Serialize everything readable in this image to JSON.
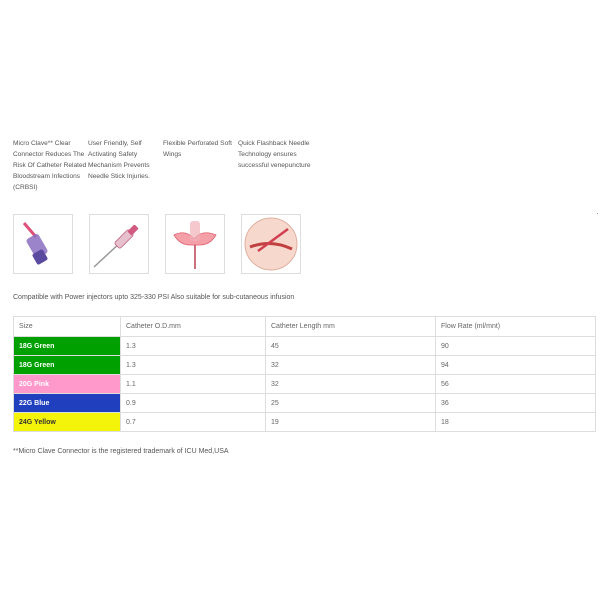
{
  "features": [
    "Micro Clave** Clear Connector Reduces The Risk Of Catheter Related Bloodstream Infections (CRBSI)",
    "User Friendly, Self Activating Safety Mechanism Prevents Needle Stick Injuries.",
    "Flexible Perforated Soft Wings",
    "Quick Flashback Needle Technology ensures successful venepuncture"
  ],
  "thumbnails": [
    "cannula-connector-icon",
    "cannula-needle-icon",
    "cannula-wings-icon",
    "venepuncture-icon"
  ],
  "compat_text": "Compatible with Power injectors upto 325-330 PSI Also suitable for sub-cutaneous infusion",
  "table": {
    "headers": [
      "Size",
      "Catheter O.D.mm",
      "Catheter Length mm",
      "Flow Rate (ml/mnt)"
    ],
    "rows": [
      {
        "size": "18G Green",
        "od": "1.3",
        "length": "45",
        "flow": "90",
        "bg": "#00a000",
        "fg": "#ffffff"
      },
      {
        "size": "18G Green",
        "od": "1.3",
        "length": "32",
        "flow": "94",
        "bg": "#00a000",
        "fg": "#ffffff"
      },
      {
        "size": "20G Pink",
        "od": "1.1",
        "length": "32",
        "flow": "56",
        "bg": "#ff99cc",
        "fg": "#ffffff"
      },
      {
        "size": "22G Blue",
        "od": "0.9",
        "length": "25",
        "flow": "36",
        "bg": "#1f3fbf",
        "fg": "#ffffff"
      },
      {
        "size": "24G Yellow",
        "od": "0.7",
        "length": "19",
        "flow": "18",
        "bg": "#f4f40a",
        "fg": "#333333"
      }
    ]
  },
  "footnote": "**Micro Clave Connector is the registered trademark of ICU Med,USA"
}
